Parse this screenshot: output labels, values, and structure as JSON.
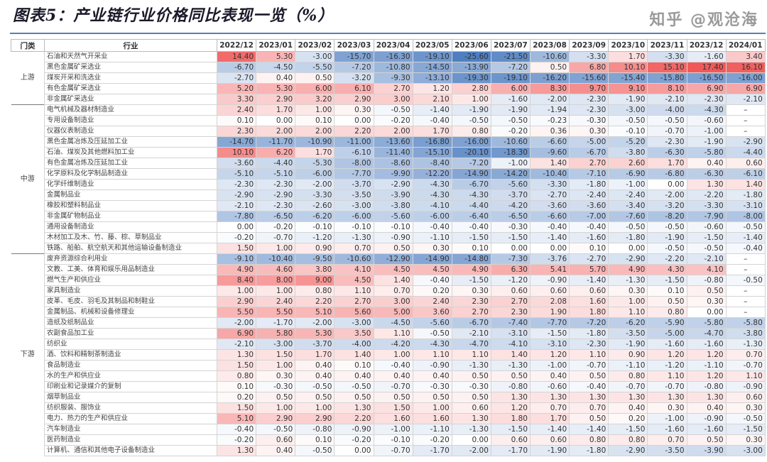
{
  "title": "图表5：产业链行业价格同比表现一览（%）",
  "watermark": "知乎 @观沧海",
  "colors": {
    "positive": "#f05050",
    "negative": "#4678be"
  },
  "chart_data": {
    "type": "heatmap",
    "title": "图表5：产业链行业价格同比表现一览（%）",
    "headers": {
      "section": "门类",
      "industry": "行业"
    },
    "columns": [
      "2022/12",
      "2023/01",
      "2023/02",
      "2023/03",
      "2023/04",
      "2023/05",
      "2023/06",
      "2023/07",
      "2023/08",
      "2023/09",
      "2023/10",
      "2023/11",
      "2023/12",
      "2024/01"
    ],
    "sections": [
      {
        "name": "上游",
        "rows": [
          {
            "industry": "石油和天然气开采业",
            "values": [
              "14.40",
              "5.30",
              "-3.00",
              "-15.70",
              "-16.30",
              "-19.10",
              "-25.60",
              "-21.50",
              "-10.60",
              "-3.30",
              "1.70",
              "-3.30",
              "-1.60",
              "3.40"
            ]
          },
          {
            "industry": "黑色金属矿采选业",
            "values": [
              "-6.70",
              "-4.50",
              "-5.50",
              "-7.20",
              "-10.80",
              "-14.50",
              "-13.90",
              "-7.20",
              "0.50",
              "6.80",
              "10.10",
              "15.10",
              "17.40",
              "16.10"
            ]
          },
          {
            "industry": "煤炭开采和洗选业",
            "values": [
              "-2.70",
              "0.40",
              "0.50",
              "-3.20",
              "-9.30",
              "-13.10",
              "-19.30",
              "-19.10",
              "-16.20",
              "-15.60",
              "-15.40",
              "-15.80",
              "-16.50",
              "-16.00"
            ]
          },
          {
            "industry": "有色金属矿采选业",
            "values": [
              "5.20",
              "5.30",
              "6.00",
              "6.10",
              "2.70",
              "1.20",
              "2.80",
              "6.00",
              "8.30",
              "9.70",
              "9.10",
              "8.10",
              "6.90",
              "6.90"
            ]
          },
          {
            "industry": "非金属矿采选业",
            "values": [
              "3.30",
              "2.90",
              "3.20",
              "2.90",
              "3.00",
              "2.10",
              "1.00",
              "-1.60",
              "-2.00",
              "-2.30",
              "-1.90",
              "-2.10",
              "-2.30",
              "-2.10"
            ]
          }
        ]
      },
      {
        "name": "中游",
        "rows": [
          {
            "industry": "电气机械及器材制造业",
            "values": [
              "2.40",
              "1.70",
              "1.00",
              "0.30",
              "-0.50",
              "-1.40",
              "-1.90",
              "-1.90",
              "-1.94",
              "-2.30",
              "-3.00",
              "-4.00",
              "-4.30",
              "–"
            ]
          },
          {
            "industry": "专用设备制造业",
            "values": [
              "0.10",
              "0.00",
              "0.10",
              "0.00",
              "-0.20",
              "-0.40",
              "-0.50",
              "-0.50",
              "-0.23",
              "-0.30",
              "-0.50",
              "-0.50",
              "-0.60",
              "–"
            ]
          },
          {
            "industry": "仪器仪表制造业",
            "values": [
              "2.30",
              "2.00",
              "2.00",
              "2.20",
              "2.00",
              "1.70",
              "0.80",
              "-0.20",
              "0.36",
              "0.30",
              "-0.10",
              "-0.70",
              "-1.00",
              "–"
            ]
          },
          {
            "industry": "黑色金属冶炼及压延加工业",
            "values": [
              "-14.70",
              "-11.70",
              "-10.90",
              "-11.00",
              "-13.60",
              "-16.80",
              "-16.00",
              "-10.60",
              "-6.60",
              "-5.00",
              "-5.20",
              "-2.30",
              "-1.90",
              "-2.90"
            ]
          },
          {
            "industry": "石油、煤炭及其他燃料加工业",
            "values": [
              "10.10",
              "6.20",
              "1.70",
              "-6.10",
              "-11.40",
              "-15.10",
              "-20.10",
              "-18.30",
              "-9.60",
              "-6.70",
              "-3.80",
              "-6.30",
              "-5.80",
              "-4.40"
            ]
          },
          {
            "industry": "有色金属冶炼及压延加工业",
            "values": [
              "-3.60",
              "-4.40",
              "-5.30",
              "-8.00",
              "-8.60",
              "-8.40",
              "-7.20",
              "-1.00",
              "1.40",
              "2.70",
              "2.60",
              "1.70",
              "0.40",
              "0.60"
            ]
          },
          {
            "industry": "化学原料及化学制品制造业",
            "values": [
              "-5.10",
              "-5.10",
              "-6.00",
              "-7.70",
              "-9.90",
              "-12.20",
              "-14.90",
              "-14.20",
              "-10.40",
              "-7.10",
              "-6.90",
              "-6.80",
              "-6.30",
              "-6.10"
            ]
          },
          {
            "industry": "化学纤维制造业",
            "values": [
              "-2.30",
              "-2.30",
              "-2.00",
              "-3.70",
              "-2.90",
              "-4.30",
              "-6.70",
              "-5.60",
              "-3.30",
              "-1.80",
              "-1.00",
              "0.00",
              "1.30",
              "1.40"
            ]
          },
          {
            "industry": "金属制品业",
            "values": [
              "-2.90",
              "-2.90",
              "-3.30",
              "-3.50",
              "-3.90",
              "-4.30",
              "-4.30",
              "-3.70",
              "-2.70",
              "-2.40",
              "-2.40",
              "-2.00",
              "-2.20",
              "-1.80"
            ]
          },
          {
            "industry": "橡胶和塑料制品业",
            "values": [
              "-2.10",
              "-2.30",
              "-2.60",
              "-3.00",
              "-3.80",
              "-4.10",
              "-4.40",
              "-4.20",
              "-3.60",
              "-3.60",
              "-3.40",
              "-3.20",
              "-3.30",
              "-3.10"
            ]
          },
          {
            "industry": "非金属矿物制品业",
            "values": [
              "-7.80",
              "-6.50",
              "-6.20",
              "-6.00",
              "-5.60",
              "-6.00",
              "-6.40",
              "-6.50",
              "-6.60",
              "-7.00",
              "-7.60",
              "-8.20",
              "-7.90",
              "-8.00"
            ]
          },
          {
            "industry": "通用设备制造业",
            "values": [
              "0.00",
              "-0.20",
              "-0.10",
              "-0.10",
              "-0.10",
              "-0.40",
              "-0.40",
              "-0.30",
              "-0.40",
              "-0.40",
              "-0.50",
              "-0.50",
              "-0.60",
              "-0.50"
            ]
          },
          {
            "industry": "木材加工及木、竹、藤、棕、草制品业",
            "values": [
              "-0.20",
              "-0.70",
              "-1.20",
              "-1.30",
              "-0.90",
              "-1.10",
              "-1.50",
              "-1.50",
              "-1.40",
              "-1.60",
              "-1.80",
              "-1.90",
              "-1.50",
              "-1.40"
            ]
          },
          {
            "industry": "铁路、船舶、航空航天和其他运输设备制造业",
            "values": [
              "1.50",
              "1.00",
              "0.90",
              "0.70",
              "0.50",
              "0.30",
              "0.10",
              "0.00",
              "0.00",
              "0.10",
              "0.00",
              "-0.50",
              "-0.50",
              "-0.40"
            ]
          }
        ]
      },
      {
        "name": "下游",
        "rows": [
          {
            "industry": "废弃资源综合利用业",
            "values": [
              "-9.10",
              "-10.40",
              "-9.50",
              "-10.60",
              "-12.90",
              "-14.90",
              "-14.80",
              "-7.30",
              "-3.76",
              "-2.70",
              "-2.90",
              "-2.20",
              "-2.10",
              "–"
            ]
          },
          {
            "industry": "文教、工美、体育和娱乐用品制造业",
            "values": [
              "4.90",
              "4.60",
              "3.80",
              "4.10",
              "4.50",
              "4.50",
              "4.90",
              "6.30",
              "5.41",
              "5.70",
              "4.90",
              "4.30",
              "4.10",
              "–"
            ]
          },
          {
            "industry": "燃气生产和供应业",
            "values": [
              "8.40",
              "8.00",
              "9.00",
              "4.50",
              "1.40",
              "-0.40",
              "-1.50",
              "-1.20",
              "-0.90",
              "-1.40",
              "-1.30",
              "-1.50",
              "-0.80",
              "-0.50"
            ]
          },
          {
            "industry": "家具制造业",
            "values": [
              "1.00",
              "1.00",
              "0.80",
              "1.10",
              "0.70",
              "0.20",
              "0.30",
              "0.60",
              "0.60",
              "0.60",
              "0.30",
              "0.10",
              "0.50",
              "–"
            ]
          },
          {
            "industry": "皮革、毛皮、羽毛及其制品和制鞋业",
            "values": [
              "2.90",
              "2.40",
              "2.20",
              "2.70",
              "3.00",
              "2.40",
              "2.30",
              "2.70",
              "2.08",
              "1.60",
              "1.00",
              "0.50",
              "0.30",
              "–"
            ]
          },
          {
            "industry": "金属制品、机械和设备修理业",
            "values": [
              "5.50",
              "5.50",
              "5.10",
              "5.60",
              "5.00",
              "3.60",
              "2.70",
              "2.30",
              "1.90",
              "1.80",
              "1.10",
              "0.80",
              "0.00",
              "–"
            ]
          },
          {
            "industry": "造纸及纸制品业",
            "values": [
              "-2.00",
              "-1.70",
              "-2.00",
              "-3.00",
              "-4.50",
              "-5.60",
              "-6.70",
              "-7.40",
              "-7.70",
              "-7.20",
              "-6.20",
              "-5.90",
              "-5.80",
              "-5.80"
            ]
          },
          {
            "industry": "农副食品加工业",
            "values": [
              "6.90",
              "5.80",
              "5.30",
              "3.50",
              "1.10",
              "-0.50",
              "-2.10",
              "-3.10",
              "-1.50",
              "-1.80",
              "-3.50",
              "-5.00",
              "-4.70",
              "-3.80"
            ]
          },
          {
            "industry": "纺织业",
            "values": [
              "-2.10",
              "-3.00",
              "-3.70",
              "-4.00",
              "-4.20",
              "-4.30",
              "-4.70",
              "-4.10",
              "-3.10",
              "-2.30",
              "-1.90",
              "-1.60",
              "-1.60",
              "-1.30"
            ]
          },
          {
            "industry": "酒、饮料和精制茶制造业",
            "values": [
              "1.30",
              "1.50",
              "1.70",
              "1.40",
              "1.00",
              "1.10",
              "1.10",
              "1.40",
              "1.20",
              "1.10",
              "0.90",
              "1.20",
              "1.20",
              "0.70"
            ]
          },
          {
            "industry": "食品制造业",
            "values": [
              "1.50",
              "1.00",
              "0.40",
              "0.10",
              "-0.40",
              "-0.90",
              "-1.30",
              "-1.30",
              "-1.00",
              "-0.70",
              "-1.10",
              "-1.20",
              "-1.10",
              "-0.70"
            ]
          },
          {
            "industry": "水的生产和供应业",
            "values": [
              "0.80",
              "0.30",
              "0.40",
              "0.40",
              "0.40",
              "0.40",
              "0.50",
              "0.50",
              "0.40",
              "0.50",
              "0.80",
              "1.10",
              "1.20",
              "1.10"
            ]
          },
          {
            "industry": "印刷业和记录媒介的复制",
            "values": [
              "0.10",
              "-0.30",
              "-0.50",
              "-0.50",
              "-0.70",
              "-0.30",
              "-0.30",
              "-0.80",
              "-0.60",
              "-0.40",
              "-0.70",
              "-0.70",
              "-0.80",
              "-0.90"
            ]
          },
          {
            "industry": "烟草制品业",
            "values": [
              "0.20",
              "0.50",
              "0.50",
              "0.50",
              "0.50",
              "0.50",
              "0.50",
              "1.30",
              "1.30",
              "1.30",
              "1.30",
              "1.30",
              "1.30",
              "0.60"
            ]
          },
          {
            "industry": "纺织服装、服饰业",
            "values": [
              "1.50",
              "1.00",
              "1.00",
              "1.30",
              "1.50",
              "1.00",
              "0.60",
              "1.20",
              "0.70",
              "0.70",
              "0.40",
              "0.30",
              "0.40",
              "0.30"
            ]
          },
          {
            "industry": "电力、热力的生产和供应业",
            "values": [
              "5.10",
              "2.90",
              "2.90",
              "2.20",
              "1.60",
              "1.60",
              "1.30",
              "1.80",
              "1.70",
              "0.50",
              "0.20",
              "-1.00",
              "-0.90",
              "-0.50"
            ]
          },
          {
            "industry": "汽车制造业",
            "values": [
              "-0.40",
              "-0.50",
              "-0.80",
              "-0.90",
              "-1.00",
              "-1.10",
              "-1.30",
              "-1.50",
              "-1.40",
              "-1.40",
              "-1.50",
              "-1.60",
              "-1.60",
              "-1.50"
            ]
          },
          {
            "industry": "医药制造业",
            "values": [
              "-0.20",
              "0.60",
              "0.10",
              "-0.20",
              "-0.10",
              "-0.20",
              "0.00",
              "0.60",
              "0.60",
              "0.80",
              "0.80",
              "0.70",
              "0.50",
              "0.30"
            ]
          },
          {
            "industry": "计算机、通信和其他电子设备制造业",
            "values": [
              "1.30",
              "0.40",
              "-0.50",
              "0.00",
              "-0.70",
              "-1.70",
              "-2.00",
              "-1.70",
              "-1.90",
              "-1.80",
              "-2.90",
              "-3.50",
              "-3.90",
              "-3.00"
            ]
          }
        ]
      }
    ]
  }
}
